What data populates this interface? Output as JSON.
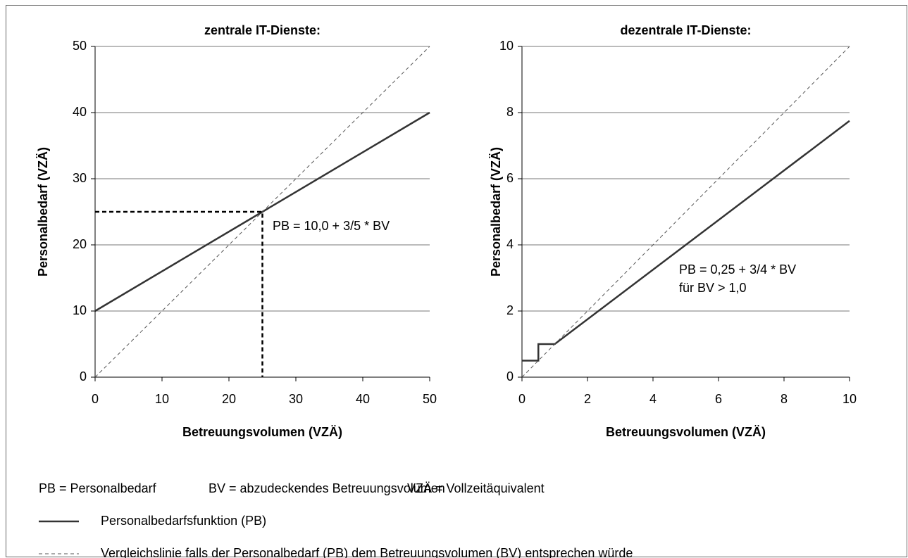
{
  "chart_data": [
    {
      "type": "line",
      "title": "zentrale IT-Dienste:",
      "xlabel": "Betreuungsvolumen (VZÄ)",
      "ylabel": "Personalbedarf (VZÄ)",
      "xlim": [
        0,
        50
      ],
      "ylim": [
        0,
        50
      ],
      "xticks": [
        0,
        10,
        20,
        30,
        40,
        50
      ],
      "yticks": [
        0,
        10,
        20,
        30,
        40,
        50
      ],
      "grid": true,
      "series": [
        {
          "name": "Personalbedarfsfunktion (PB)",
          "color": "#333333",
          "style": "solid",
          "x": [
            0,
            50
          ],
          "values": [
            10,
            40
          ]
        },
        {
          "name": "Vergleichslinie falls der Personalbedarf (PB) dem Betreuungsvolumen (BV) entsprechen würde",
          "color": "#555555",
          "style": "dashed",
          "x": [
            0,
            50
          ],
          "values": [
            0,
            50
          ]
        },
        {
          "color": "#000000",
          "style": "dashed-bold",
          "x": [
            0,
            25,
            25
          ],
          "values": [
            25,
            25,
            0
          ]
        }
      ],
      "annotations": [
        "PB = 10,0 + 3/5 * BV"
      ]
    },
    {
      "type": "line",
      "title": "dezentrale IT-Dienste:",
      "xlabel": "Betreuungsvolumen (VZÄ)",
      "ylabel": "Personalbedarf (VZÄ)",
      "xlim": [
        0,
        10
      ],
      "ylim": [
        0,
        10
      ],
      "xticks": [
        0,
        2,
        4,
        6,
        8,
        10
      ],
      "yticks": [
        0,
        2,
        4,
        6,
        8,
        10
      ],
      "grid": true,
      "series": [
        {
          "color": "#333333",
          "style": "solid",
          "x": [
            0,
            0.5,
            0.5,
            1,
            10
          ],
          "values": [
            0.5,
            0.5,
            1,
            1,
            7.75
          ]
        },
        {
          "color": "#555555",
          "style": "dashed",
          "x": [
            0,
            10
          ],
          "values": [
            0,
            10
          ]
        }
      ],
      "annotations": [
        "PB = 0,25 + 3/4 * BV",
        "für BV > 1,0"
      ]
    }
  ],
  "notes": [
    "PB = Personalbedarf",
    "BV = abzudeckendes Betreuungsvolumen",
    "VZÄ = Vollzeitäquivalent"
  ]
}
